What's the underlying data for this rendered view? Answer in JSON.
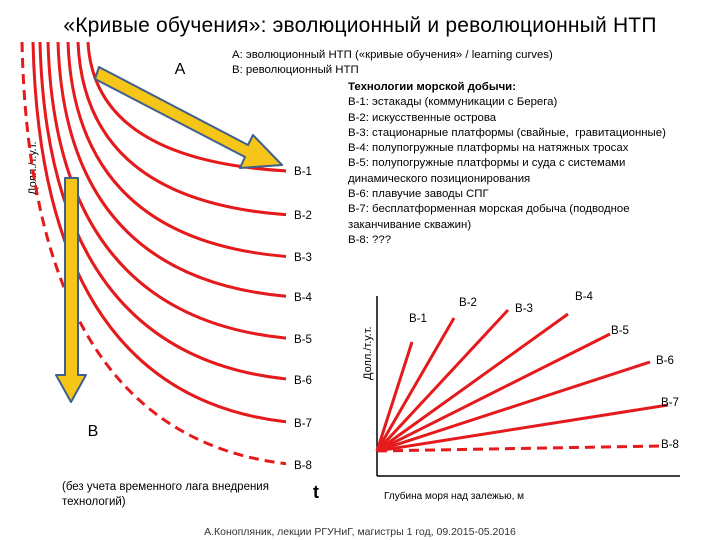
{
  "title": "«Кривые обучения»: эволюционный и революционный НТП",
  "legend": {
    "line_a": "А: эволюционный НТП («кривые обучения» / learning curves)",
    "line_b": "В: революционный НТП"
  },
  "technologies": {
    "heading": "Технологии морской добычи:",
    "lines": [
      "В-1: эстакады (коммуникации с Берега)",
      "В-2: искусственные острова",
      "В-3: стационарные платформы (свайные,  гравитационные)",
      "В-4: полупогружные платформы на натяжных тросах",
      "В-5: полупогружные платформы и суда с системами",
      "динамического позиционирования",
      "В-6: плавучие заводы СПГ",
      "В-7: бесплатформенная морская добыча (подводное",
      "заканчивание скважин)",
      "В-8: ???"
    ]
  },
  "left_chart": {
    "y_axis_label": "Долл./т.у.т.",
    "x_axis_label": "t",
    "arrow_a_label": "А",
    "arrow_b_label": "В",
    "curve_labels": [
      "В-1",
      "В-2",
      "В-3",
      "В-4",
      "В-5",
      "В-6",
      "В-7",
      "В-8"
    ],
    "note": "(без учета временного лага внедрения технологий)"
  },
  "right_chart": {
    "y_axis_label": "Долл./т.у.т.",
    "x_axis_label": "Глубина моря над залежью, м",
    "ray_labels": [
      "В-1",
      "В-2",
      "В-3",
      "В-4",
      "В-5",
      "В-6",
      "В-7",
      "В-8"
    ]
  },
  "footer": "А.Конопляник, лекции РГУНиГ, магистры 1 год, 09.2015-05.2016",
  "colors": {
    "curve": "#e41a1c",
    "arrow_fill": "#f5c518",
    "arrow_stroke": "#3f5f8f",
    "axis": "#000000"
  }
}
